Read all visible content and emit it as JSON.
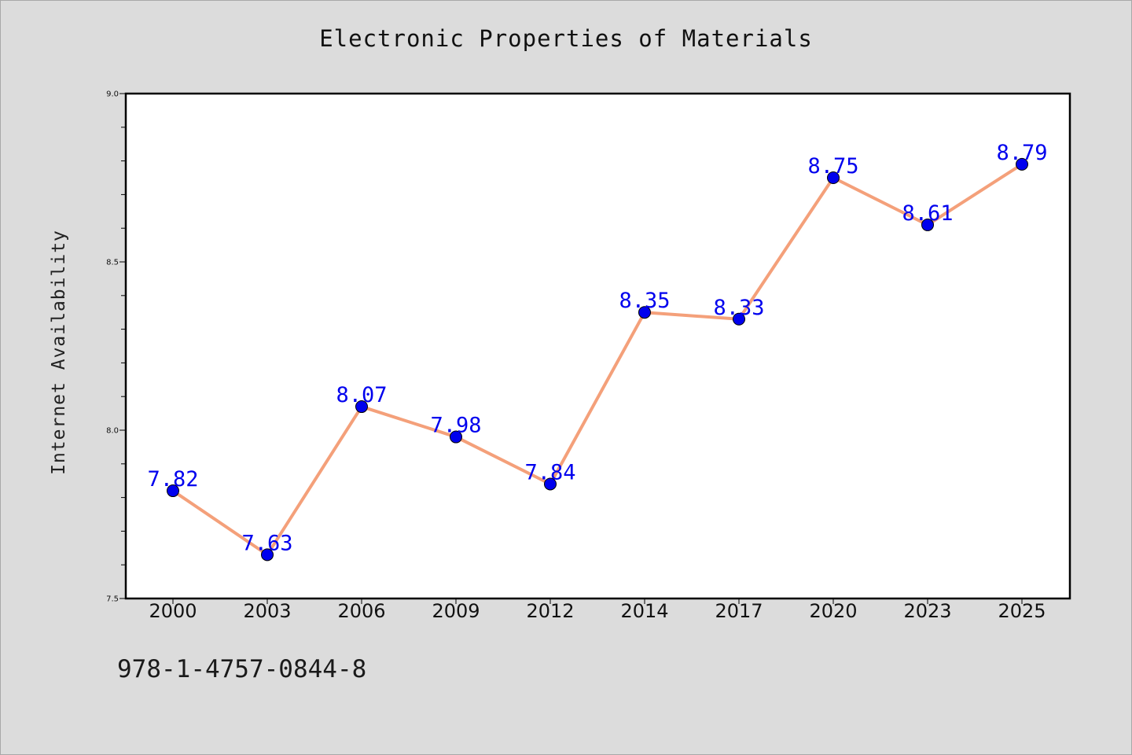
{
  "chart_data": {
    "type": "line",
    "title": "Electronic Properties of Materials",
    "xlabel": "",
    "ylabel": "Internet Availability",
    "categories": [
      "2000",
      "2003",
      "2006",
      "2009",
      "2012",
      "2014",
      "2017",
      "2020",
      "2023",
      "2025"
    ],
    "series": [
      {
        "values": [
          7.82,
          7.63,
          8.07,
          7.98,
          7.84,
          8.35,
          8.33,
          8.75,
          8.61,
          8.79
        ],
        "line_color": "#f4a07a",
        "marker_color": "#0000ee",
        "label_color": "#0000ee"
      }
    ],
    "ylim": [
      7.5,
      9.0
    ],
    "yticks": [
      "7.5",
      "8.0",
      "8.5",
      "9.0"
    ],
    "grid": false,
    "data_labels": true
  },
  "footer": {
    "isbn": "978-1-4757-0844-8"
  },
  "colors": {
    "background": "#dcdcdc",
    "plot_background": "#ffffff",
    "axes": "#000000"
  }
}
